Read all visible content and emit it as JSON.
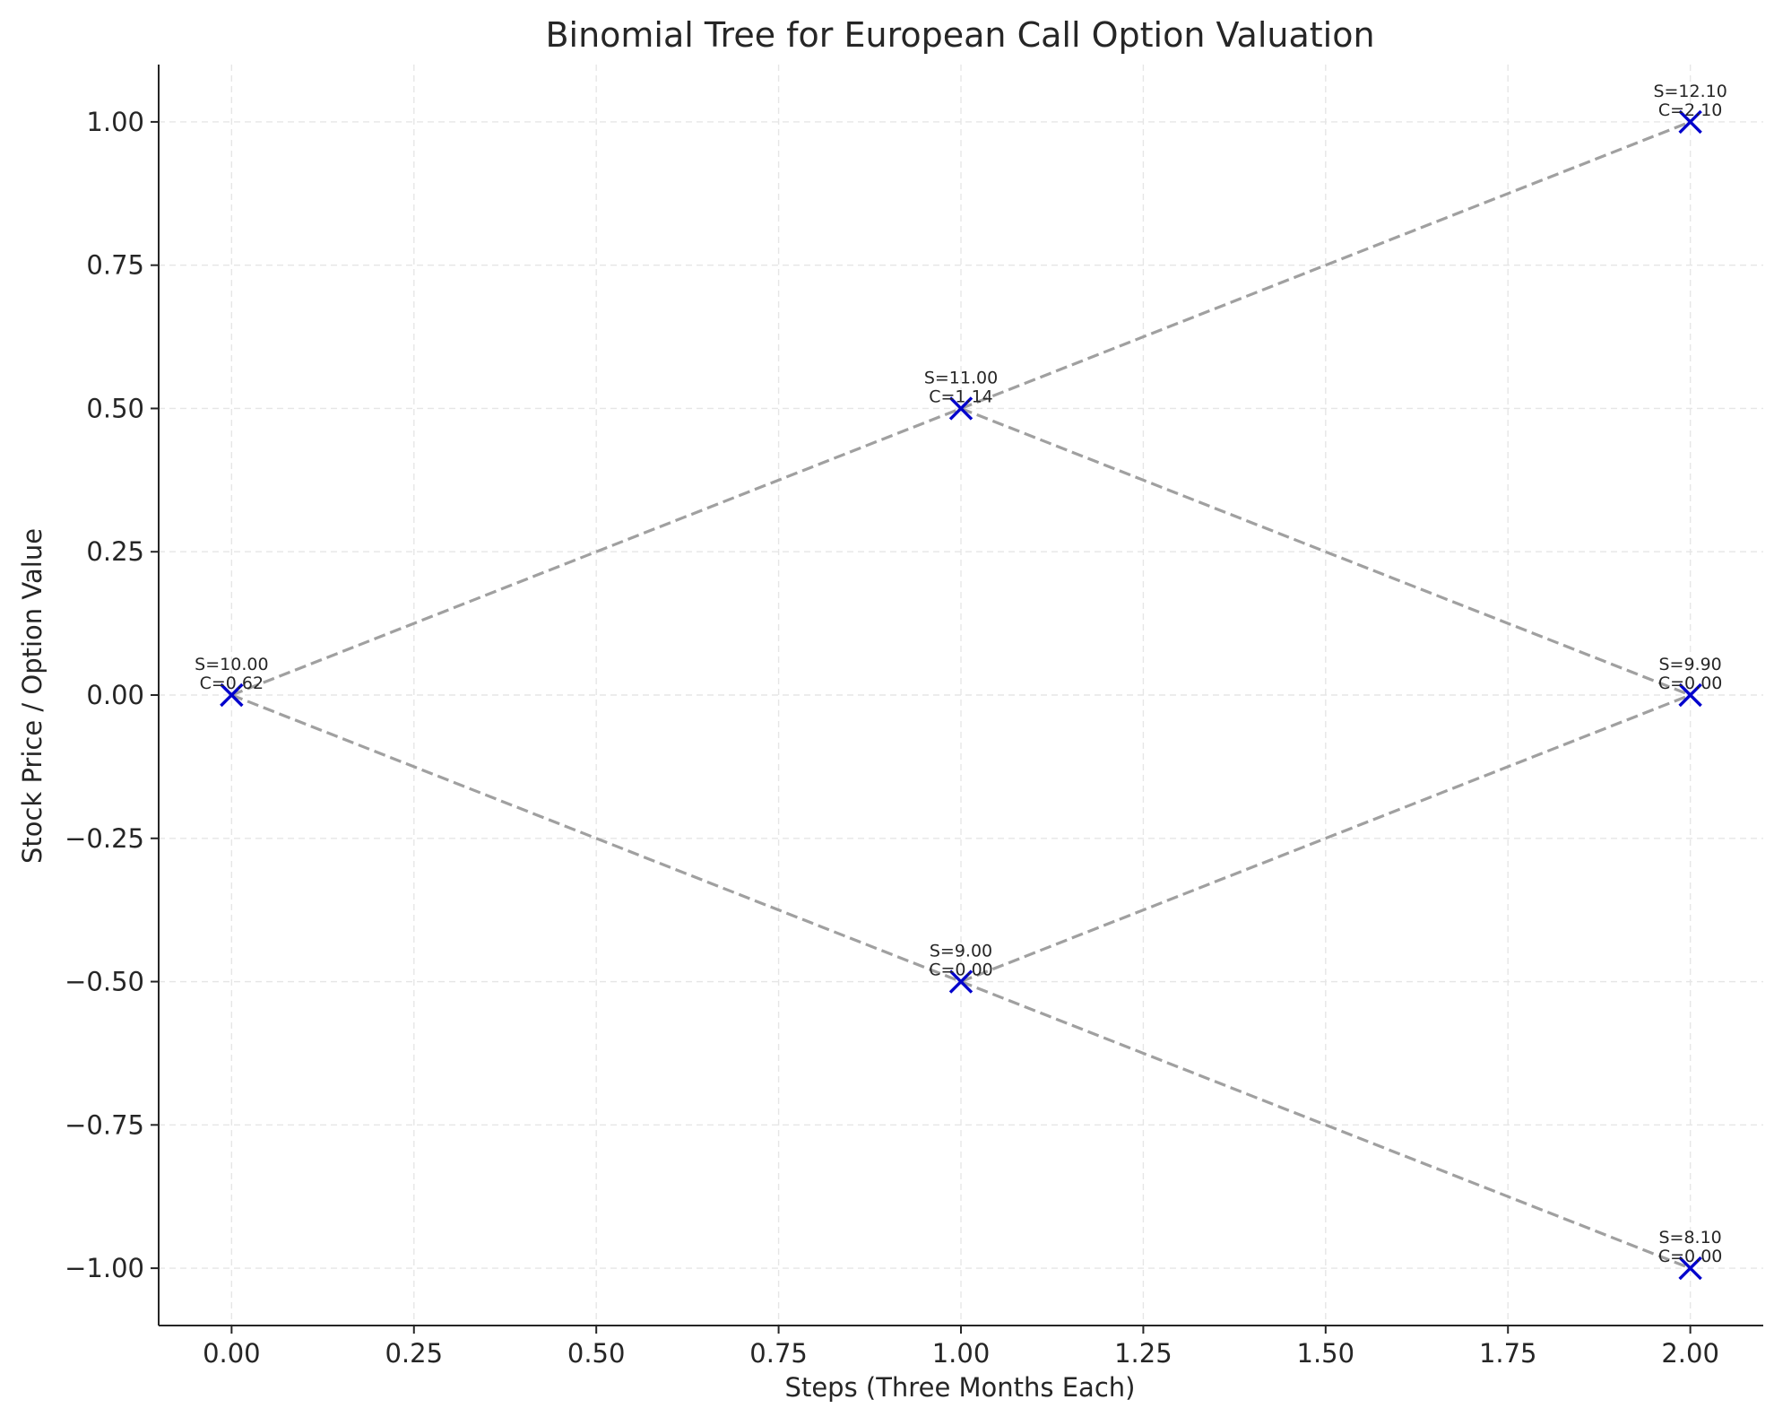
{
  "chart_data": {
    "type": "scatter",
    "title": "Binomial Tree for European Call Option Valuation",
    "xlabel": "Steps (Three Months Each)",
    "ylabel": "Stock Price / Option Value",
    "xlim": [
      -0.1,
      2.1
    ],
    "ylim": [
      -1.1,
      1.1
    ],
    "xticks": [
      0.0,
      0.25,
      0.5,
      0.75,
      1.0,
      1.25,
      1.5,
      1.75,
      2.0
    ],
    "xtick_labels": [
      "0.00",
      "0.25",
      "0.50",
      "0.75",
      "1.00",
      "1.25",
      "1.50",
      "1.75",
      "2.00"
    ],
    "yticks": [
      1.0,
      0.75,
      0.5,
      0.25,
      0.0,
      -0.25,
      -0.5,
      -0.75,
      -1.0
    ],
    "ytick_labels": [
      "1.00",
      "0.75",
      "0.50",
      "0.25",
      "0.00",
      "−0.25",
      "−0.50",
      "−0.75",
      "−1.00"
    ],
    "grid": true,
    "marker_color": "#0000cc",
    "edge_color": "#a0a0a0",
    "nodes": [
      {
        "x": 0,
        "y": 0.0,
        "stock": "S=10.00",
        "option": "C=0.62"
      },
      {
        "x": 1,
        "y": 0.5,
        "stock": "S=11.00",
        "option": "C=1.14"
      },
      {
        "x": 1,
        "y": -0.5,
        "stock": "S=9.00",
        "option": "C=0.00"
      },
      {
        "x": 2,
        "y": 1.0,
        "stock": "S=12.10",
        "option": "C=2.10"
      },
      {
        "x": 2,
        "y": 0.0,
        "stock": "S=9.90",
        "option": "C=0.00"
      },
      {
        "x": 2,
        "y": -1.0,
        "stock": "S=8.10",
        "option": "C=0.00"
      }
    ],
    "edges": [
      {
        "from": [
          0,
          0.0
        ],
        "to": [
          1,
          0.5
        ]
      },
      {
        "from": [
          0,
          0.0
        ],
        "to": [
          1,
          -0.5
        ]
      },
      {
        "from": [
          1,
          0.5
        ],
        "to": [
          2,
          1.0
        ]
      },
      {
        "from": [
          1,
          0.5
        ],
        "to": [
          2,
          0.0
        ]
      },
      {
        "from": [
          1,
          -0.5
        ],
        "to": [
          2,
          0.0
        ]
      },
      {
        "from": [
          1,
          -0.5
        ],
        "to": [
          2,
          -1.0
        ]
      }
    ]
  }
}
